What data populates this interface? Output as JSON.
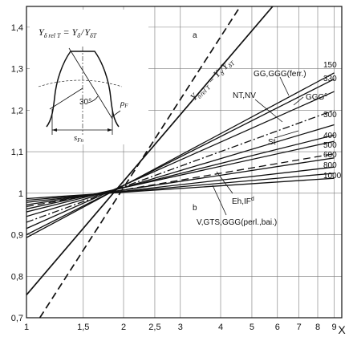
{
  "chart_data": {
    "type": "line",
    "title": "",
    "xlabel": "X",
    "ylabel": "",
    "x_scale": "log",
    "xlim": [
      1,
      9.5
    ],
    "ylim": [
      0.7,
      1.45
    ],
    "x_ticks": [
      1,
      1.5,
      2,
      2.5,
      3,
      4,
      5,
      6,
      7,
      8,
      9
    ],
    "x_tick_labels": [
      "1",
      "1,5",
      "2",
      "2,5",
      "3",
      "4",
      "5",
      "6",
      "7",
      "8",
      "9"
    ],
    "y_ticks": [
      0.7,
      0.8,
      0.9,
      1.0,
      1.1,
      1.2,
      1.3,
      1.4
    ],
    "y_tick_labels": [
      "0,7",
      "0,8",
      "0,9",
      "1",
      "1,1",
      "1,2",
      "1,3",
      "1,4"
    ],
    "grid": true,
    "pivot": {
      "x": 2.5,
      "y": 1.0
    },
    "series": [
      {
        "name": "",
        "style": "solid",
        "endpoints": [
          [
            1,
            0.755
          ],
          [
            5.8,
            1.45
          ]
        ]
      },
      {
        "name": "a",
        "style": "dashed",
        "endpoints": [
          [
            1.1,
            0.7
          ],
          [
            4.6,
            1.45
          ]
        ]
      },
      {
        "name": "",
        "style": "solid",
        "endpoints": [
          [
            1,
            0.893
          ],
          [
            9,
            1.29
          ]
        ]
      },
      {
        "name": "",
        "style": "solid",
        "endpoints": [
          [
            1,
            0.9
          ],
          [
            9,
            1.275
          ]
        ]
      },
      {
        "name": "",
        "style": "solid",
        "endpoints": [
          [
            1,
            0.915
          ],
          [
            9,
            1.245
          ]
        ]
      },
      {
        "name": "",
        "style": "dashdot",
        "endpoints": [
          [
            1,
            0.93
          ],
          [
            9,
            1.2
          ]
        ]
      },
      {
        "name": "",
        "style": "solid",
        "endpoints": [
          [
            1,
            0.944
          ],
          [
            9,
            1.165
          ]
        ]
      },
      {
        "name": "",
        "style": "solid",
        "endpoints": [
          [
            1,
            0.955
          ],
          [
            9,
            1.14
          ]
        ]
      },
      {
        "name": "",
        "style": "solid",
        "endpoints": [
          [
            1,
            0.962
          ],
          [
            9,
            1.125
          ]
        ]
      },
      {
        "name": "",
        "style": "dashed",
        "endpoints": [
          [
            1,
            0.968
          ],
          [
            9,
            1.095
          ]
        ]
      },
      {
        "name": "",
        "style": "solid",
        "endpoints": [
          [
            1,
            0.972
          ],
          [
            9,
            1.085
          ]
        ]
      },
      {
        "name": "",
        "style": "solid",
        "endpoints": [
          [
            1,
            0.978
          ],
          [
            9,
            1.063
          ]
        ]
      },
      {
        "name": "",
        "style": "solid",
        "endpoints": [
          [
            1,
            0.983
          ],
          [
            9,
            1.048
          ]
        ]
      },
      {
        "name": "",
        "style": "solid",
        "endpoints": [
          [
            1,
            0.987
          ],
          [
            9,
            1.036
          ]
        ]
      }
    ],
    "right_labels": [
      "150",
      "330",
      "300",
      "400",
      "500",
      "600",
      "800",
      "1000"
    ],
    "annotations": [
      "GG,GGG(ferr.)",
      "GGG",
      "c",
      "NT,NV",
      "St",
      "Eh,IF",
      "d",
      "V,GTS,GGG(perl.,bai.)",
      "b",
      "a"
    ],
    "rotated_formula": {
      "Y": "Y",
      "sub": "δ",
      "sub2": "rel T",
      "eq": "=",
      "rhs_Y": "Y",
      "rhs_sub": "δ",
      "slash": "/",
      "rhs_Y2": "Y",
      "rhs_sub2": "δT"
    },
    "inset": {
      "formula_left": "Y",
      "formula_left_sub": "δ rel T",
      "formula_eq": "=",
      "formula_rhs1": "Y",
      "formula_rhs1_sub": "δ",
      "formula_slash": "/",
      "formula_rhs2": "Y",
      "formula_rhs2_sub": "δT",
      "angle_label": "30°",
      "rho_label": "ρ",
      "rho_sub": "F",
      "s_label": "s",
      "s_sub": "Fn"
    }
  }
}
